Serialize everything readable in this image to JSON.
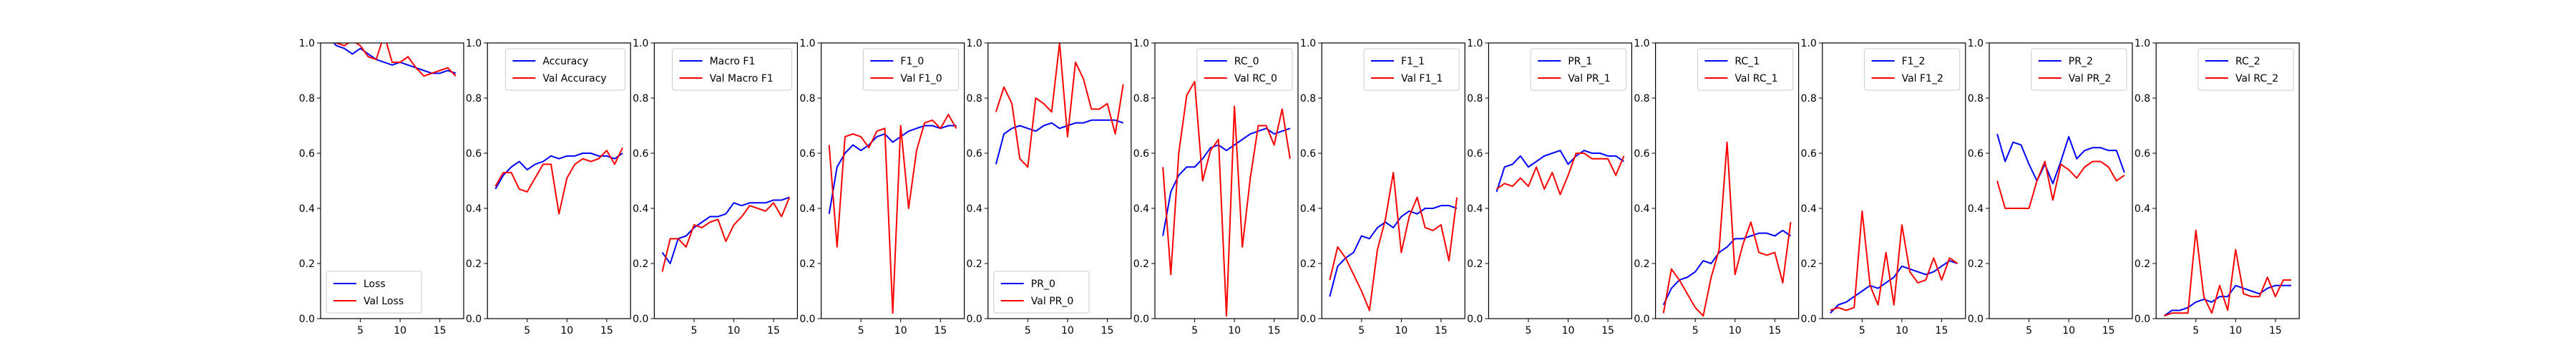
{
  "colors": {
    "train": "#0000ff",
    "val": "#ff0000"
  },
  "chart_data": [
    {
      "type": "line",
      "legend": "lower-left",
      "ylim": [
        0,
        1
      ],
      "yticks": [
        0.0,
        0.2,
        0.4,
        0.6,
        0.8,
        1.0
      ],
      "ytick_labels": [
        "0.0",
        "0.2",
        "0.4",
        "0.6",
        "0.8",
        "1.0"
      ],
      "xlim": [
        0,
        18
      ],
      "xticks": [
        5,
        10,
        15
      ],
      "xtick_labels": [
        "5",
        "10",
        "15"
      ],
      "x": [
        1,
        2,
        3,
        4,
        5,
        6,
        7,
        8,
        9,
        10,
        11,
        12,
        13,
        14,
        15,
        16,
        17
      ],
      "series": [
        {
          "name": "Loss",
          "color": "#0000ff",
          "values": [
            1.02,
            0.99,
            0.98,
            0.96,
            0.98,
            0.96,
            0.94,
            0.93,
            0.92,
            0.93,
            0.92,
            0.91,
            0.9,
            0.89,
            0.89,
            0.9,
            0.89
          ]
        },
        {
          "name": "Val Loss",
          "color": "#ff0000",
          "values": [
            1.01,
            1.0,
            0.99,
            1.01,
            0.99,
            0.95,
            0.94,
            1.03,
            0.93,
            0.93,
            0.95,
            0.91,
            0.88,
            0.89,
            0.9,
            0.91,
            0.88
          ]
        }
      ]
    },
    {
      "type": "line",
      "legend": "top-right",
      "ylim": [
        0,
        1
      ],
      "yticks": [
        0.0,
        0.2,
        0.4,
        0.6,
        0.8,
        1.0
      ],
      "ytick_labels": [
        "0.0",
        "0.2",
        "0.4",
        "0.6",
        "0.8",
        "1.0"
      ],
      "xlim": [
        0,
        18
      ],
      "xticks": [
        5,
        10,
        15
      ],
      "xtick_labels": [
        "5",
        "10",
        "15"
      ],
      "x": [
        1,
        2,
        3,
        4,
        5,
        6,
        7,
        8,
        9,
        10,
        11,
        12,
        13,
        14,
        15,
        16,
        17
      ],
      "series": [
        {
          "name": "Accuracy",
          "color": "#0000ff",
          "values": [
            0.47,
            0.52,
            0.55,
            0.57,
            0.54,
            0.56,
            0.57,
            0.59,
            0.58,
            0.59,
            0.59,
            0.6,
            0.6,
            0.59,
            0.59,
            0.58,
            0.6
          ]
        },
        {
          "name": "Val Accuracy",
          "color": "#ff0000",
          "values": [
            0.48,
            0.53,
            0.53,
            0.47,
            0.46,
            0.51,
            0.56,
            0.56,
            0.38,
            0.51,
            0.56,
            0.58,
            0.57,
            0.58,
            0.61,
            0.56,
            0.62
          ]
        }
      ]
    },
    {
      "type": "line",
      "legend": "top-right",
      "ylim": [
        0,
        1
      ],
      "yticks": [
        0.0,
        0.2,
        0.4,
        0.6,
        0.8,
        1.0
      ],
      "ytick_labels": [
        "0.0",
        "0.2",
        "0.4",
        "0.6",
        "0.8",
        "1.0"
      ],
      "xlim": [
        0,
        18
      ],
      "xticks": [
        5,
        10,
        15
      ],
      "xtick_labels": [
        "5",
        "10",
        "15"
      ],
      "x": [
        1,
        2,
        3,
        4,
        5,
        6,
        7,
        8,
        9,
        10,
        11,
        12,
        13,
        14,
        15,
        16,
        17
      ],
      "series": [
        {
          "name": "Macro F1",
          "color": "#0000ff",
          "values": [
            0.24,
            0.2,
            0.29,
            0.3,
            0.33,
            0.35,
            0.37,
            0.37,
            0.38,
            0.42,
            0.41,
            0.42,
            0.42,
            0.42,
            0.43,
            0.43,
            0.44
          ]
        },
        {
          "name": "Val Macro F1",
          "color": "#ff0000",
          "values": [
            0.17,
            0.29,
            0.29,
            0.26,
            0.34,
            0.33,
            0.35,
            0.36,
            0.28,
            0.34,
            0.37,
            0.41,
            0.4,
            0.39,
            0.42,
            0.37,
            0.44
          ]
        }
      ]
    },
    {
      "type": "line",
      "legend": "top-right",
      "ylim": [
        0,
        1
      ],
      "yticks": [
        0.0,
        0.2,
        0.4,
        0.6,
        0.8,
        1.0
      ],
      "ytick_labels": [
        "0.0",
        "0.2",
        "0.4",
        "0.6",
        "0.8",
        "1.0"
      ],
      "xlim": [
        0,
        18
      ],
      "xticks": [
        5,
        10,
        15
      ],
      "xtick_labels": [
        "5",
        "10",
        "15"
      ],
      "x": [
        1,
        2,
        3,
        4,
        5,
        6,
        7,
        8,
        9,
        10,
        11,
        12,
        13,
        14,
        15,
        16,
        17
      ],
      "series": [
        {
          "name": "F1_0",
          "color": "#0000ff",
          "values": [
            0.38,
            0.55,
            0.6,
            0.63,
            0.61,
            0.63,
            0.66,
            0.67,
            0.64,
            0.66,
            0.68,
            0.69,
            0.7,
            0.7,
            0.69,
            0.7,
            0.7
          ]
        },
        {
          "name": "Val F1_0",
          "color": "#ff0000",
          "values": [
            0.63,
            0.26,
            0.66,
            0.67,
            0.66,
            0.62,
            0.68,
            0.69,
            0.02,
            0.7,
            0.4,
            0.61,
            0.71,
            0.72,
            0.69,
            0.74,
            0.69
          ]
        }
      ]
    },
    {
      "type": "line",
      "legend": "lower-left",
      "ylim": [
        0,
        1
      ],
      "yticks": [
        0.0,
        0.2,
        0.4,
        0.6,
        0.8,
        1.0
      ],
      "ytick_labels": [
        "0.0",
        "0.2",
        "0.4",
        "0.6",
        "0.8",
        "1.0"
      ],
      "xlim": [
        0,
        18
      ],
      "xticks": [
        5,
        10,
        15
      ],
      "xtick_labels": [
        "5",
        "10",
        "15"
      ],
      "x": [
        1,
        2,
        3,
        4,
        5,
        6,
        7,
        8,
        9,
        10,
        11,
        12,
        13,
        14,
        15,
        16,
        17
      ],
      "series": [
        {
          "name": "PR_0",
          "color": "#0000ff",
          "values": [
            0.56,
            0.67,
            0.69,
            0.7,
            0.69,
            0.68,
            0.7,
            0.71,
            0.69,
            0.7,
            0.71,
            0.71,
            0.72,
            0.72,
            0.72,
            0.72,
            0.71
          ]
        },
        {
          "name": "Val PR_0",
          "color": "#ff0000",
          "values": [
            0.75,
            0.84,
            0.78,
            0.58,
            0.55,
            0.8,
            0.78,
            0.75,
            1.0,
            0.66,
            0.93,
            0.87,
            0.76,
            0.76,
            0.78,
            0.67,
            0.85
          ]
        }
      ]
    },
    {
      "type": "line",
      "legend": "top-right",
      "ylim": [
        0,
        1
      ],
      "yticks": [
        0.0,
        0.2,
        0.4,
        0.6,
        0.8,
        1.0
      ],
      "ytick_labels": [
        "0.0",
        "0.2",
        "0.4",
        "0.6",
        "0.8",
        "1.0"
      ],
      "xlim": [
        0,
        18
      ],
      "xticks": [
        5,
        10,
        15
      ],
      "xtick_labels": [
        "5",
        "10",
        "15"
      ],
      "x": [
        1,
        2,
        3,
        4,
        5,
        6,
        7,
        8,
        9,
        10,
        11,
        12,
        13,
        14,
        15,
        16,
        17
      ],
      "series": [
        {
          "name": "RC_0",
          "color": "#0000ff",
          "values": [
            0.3,
            0.46,
            0.52,
            0.55,
            0.55,
            0.58,
            0.62,
            0.63,
            0.61,
            0.63,
            0.65,
            0.67,
            0.68,
            0.69,
            0.67,
            0.68,
            0.69
          ]
        },
        {
          "name": "Val RC_0",
          "color": "#ff0000",
          "values": [
            0.55,
            0.16,
            0.6,
            0.81,
            0.86,
            0.5,
            0.61,
            0.65,
            0.01,
            0.77,
            0.26,
            0.51,
            0.7,
            0.7,
            0.63,
            0.76,
            0.58
          ]
        }
      ]
    },
    {
      "type": "line",
      "legend": "top-right",
      "ylim": [
        0,
        1
      ],
      "yticks": [
        0.0,
        0.2,
        0.4,
        0.6,
        0.8,
        1.0
      ],
      "ytick_labels": [
        "0.0",
        "0.2",
        "0.4",
        "0.6",
        "0.8",
        "1.0"
      ],
      "xlim": [
        0,
        18
      ],
      "xticks": [
        5,
        10,
        15
      ],
      "xtick_labels": [
        "5",
        "10",
        "15"
      ],
      "x": [
        1,
        2,
        3,
        4,
        5,
        6,
        7,
        8,
        9,
        10,
        11,
        12,
        13,
        14,
        15,
        16,
        17
      ],
      "series": [
        {
          "name": "F1_1",
          "color": "#0000ff",
          "values": [
            0.08,
            0.19,
            0.22,
            0.24,
            0.3,
            0.29,
            0.33,
            0.35,
            0.33,
            0.37,
            0.39,
            0.38,
            0.4,
            0.4,
            0.41,
            0.41,
            0.4
          ]
        },
        {
          "name": "Val F1_1",
          "color": "#ff0000",
          "values": [
            0.14,
            0.26,
            0.22,
            0.16,
            0.1,
            0.03,
            0.25,
            0.36,
            0.53,
            0.24,
            0.37,
            0.44,
            0.33,
            0.32,
            0.34,
            0.21,
            0.44
          ]
        }
      ]
    },
    {
      "type": "line",
      "legend": "top-right",
      "ylim": [
        0,
        1
      ],
      "yticks": [
        0.0,
        0.2,
        0.4,
        0.6,
        0.8,
        1.0
      ],
      "ytick_labels": [
        "0.0",
        "0.2",
        "0.4",
        "0.6",
        "0.8",
        "1.0"
      ],
      "xlim": [
        0,
        18
      ],
      "xticks": [
        5,
        10,
        15
      ],
      "xtick_labels": [
        "5",
        "10",
        "15"
      ],
      "x": [
        1,
        2,
        3,
        4,
        5,
        6,
        7,
        8,
        9,
        10,
        11,
        12,
        13,
        14,
        15,
        16,
        17
      ],
      "series": [
        {
          "name": "PR_1",
          "color": "#0000ff",
          "values": [
            0.46,
            0.55,
            0.56,
            0.59,
            0.55,
            0.57,
            0.59,
            0.6,
            0.61,
            0.56,
            0.59,
            0.61,
            0.6,
            0.6,
            0.59,
            0.59,
            0.57
          ]
        },
        {
          "name": "Val PR_1",
          "color": "#ff0000",
          "values": [
            0.47,
            0.49,
            0.48,
            0.51,
            0.48,
            0.55,
            0.47,
            0.53,
            0.45,
            0.52,
            0.6,
            0.6,
            0.58,
            0.58,
            0.58,
            0.52,
            0.59
          ]
        }
      ]
    },
    {
      "type": "line",
      "legend": "top-right",
      "ylim": [
        0,
        1
      ],
      "yticks": [
        0.0,
        0.2,
        0.4,
        0.6,
        0.8,
        1.0
      ],
      "ytick_labels": [
        "0.0",
        "0.2",
        "0.4",
        "0.6",
        "0.8",
        "1.0"
      ],
      "xlim": [
        0,
        18
      ],
      "xticks": [
        5,
        10,
        15
      ],
      "xtick_labels": [
        "5",
        "10",
        "15"
      ],
      "x": [
        1,
        2,
        3,
        4,
        5,
        6,
        7,
        8,
        9,
        10,
        11,
        12,
        13,
        14,
        15,
        16,
        17
      ],
      "series": [
        {
          "name": "RC_1",
          "color": "#0000ff",
          "values": [
            0.05,
            0.11,
            0.14,
            0.15,
            0.17,
            0.21,
            0.2,
            0.24,
            0.26,
            0.29,
            0.29,
            0.3,
            0.31,
            0.31,
            0.3,
            0.32,
            0.3
          ]
        },
        {
          "name": "Val RC_1",
          "color": "#ff0000",
          "values": [
            0.02,
            0.18,
            0.14,
            0.09,
            0.04,
            0.01,
            0.15,
            0.25,
            0.64,
            0.16,
            0.27,
            0.35,
            0.24,
            0.23,
            0.24,
            0.13,
            0.35
          ]
        }
      ]
    },
    {
      "type": "line",
      "legend": "top-right",
      "ylim": [
        0,
        1
      ],
      "yticks": [
        0.0,
        0.2,
        0.4,
        0.6,
        0.8,
        1.0
      ],
      "ytick_labels": [
        "0.0",
        "0.2",
        "0.4",
        "0.6",
        "0.8",
        "1.0"
      ],
      "xlim": [
        0,
        18
      ],
      "xticks": [
        5,
        10,
        15
      ],
      "xtick_labels": [
        "5",
        "10",
        "15"
      ],
      "x": [
        1,
        2,
        3,
        4,
        5,
        6,
        7,
        8,
        9,
        10,
        11,
        12,
        13,
        14,
        15,
        16,
        17
      ],
      "series": [
        {
          "name": "F1_2",
          "color": "#0000ff",
          "values": [
            0.02,
            0.05,
            0.06,
            0.08,
            0.1,
            0.12,
            0.11,
            0.13,
            0.15,
            0.19,
            0.18,
            0.17,
            0.16,
            0.17,
            0.19,
            0.21,
            0.2
          ]
        },
        {
          "name": "Val F1_2",
          "color": "#ff0000",
          "values": [
            0.03,
            0.04,
            0.03,
            0.04,
            0.39,
            0.12,
            0.05,
            0.24,
            0.05,
            0.34,
            0.17,
            0.13,
            0.14,
            0.22,
            0.14,
            0.22,
            0.2
          ]
        }
      ]
    },
    {
      "type": "line",
      "legend": "top-right",
      "ylim": [
        0,
        1
      ],
      "yticks": [
        0.0,
        0.2,
        0.4,
        0.6,
        0.8,
        1.0
      ],
      "ytick_labels": [
        "0.0",
        "0.2",
        "0.4",
        "0.6",
        "0.8",
        "1.0"
      ],
      "xlim": [
        0,
        18
      ],
      "xticks": [
        5,
        10,
        15
      ],
      "xtick_labels": [
        "5",
        "10",
        "15"
      ],
      "x": [
        1,
        2,
        3,
        4,
        5,
        6,
        7,
        8,
        9,
        10,
        11,
        12,
        13,
        14,
        15,
        16,
        17
      ],
      "series": [
        {
          "name": "PR_2",
          "color": "#0000ff",
          "values": [
            0.67,
            0.57,
            0.64,
            0.63,
            0.56,
            0.5,
            0.56,
            0.49,
            0.57,
            0.66,
            0.58,
            0.61,
            0.62,
            0.62,
            0.61,
            0.61,
            0.53
          ]
        },
        {
          "name": "Val PR_2",
          "color": "#ff0000",
          "values": [
            0.5,
            0.4,
            0.4,
            0.4,
            0.4,
            0.5,
            0.57,
            0.43,
            0.56,
            0.54,
            0.51,
            0.55,
            0.57,
            0.57,
            0.55,
            0.5,
            0.52
          ]
        }
      ]
    },
    {
      "type": "line",
      "legend": "top-right",
      "ylim": [
        0,
        1
      ],
      "yticks": [
        0.0,
        0.2,
        0.4,
        0.6,
        0.8,
        1.0
      ],
      "ytick_labels": [
        "0.0",
        "0.2",
        "0.4",
        "0.6",
        "0.8",
        "1.0"
      ],
      "xlim": [
        0,
        18
      ],
      "xticks": [
        5,
        10,
        15
      ],
      "xtick_labels": [
        "5",
        "10",
        "15"
      ],
      "x": [
        1,
        2,
        3,
        4,
        5,
        6,
        7,
        8,
        9,
        10,
        11,
        12,
        13,
        14,
        15,
        16,
        17
      ],
      "series": [
        {
          "name": "RC_2",
          "color": "#0000ff",
          "values": [
            0.01,
            0.03,
            0.03,
            0.04,
            0.06,
            0.07,
            0.06,
            0.08,
            0.08,
            0.12,
            0.11,
            0.1,
            0.09,
            0.11,
            0.12,
            0.12,
            0.12
          ]
        },
        {
          "name": "Val RC_2",
          "color": "#ff0000",
          "values": [
            0.01,
            0.02,
            0.02,
            0.02,
            0.32,
            0.08,
            0.02,
            0.12,
            0.03,
            0.25,
            0.09,
            0.08,
            0.08,
            0.15,
            0.08,
            0.14,
            0.14
          ]
        }
      ]
    }
  ]
}
